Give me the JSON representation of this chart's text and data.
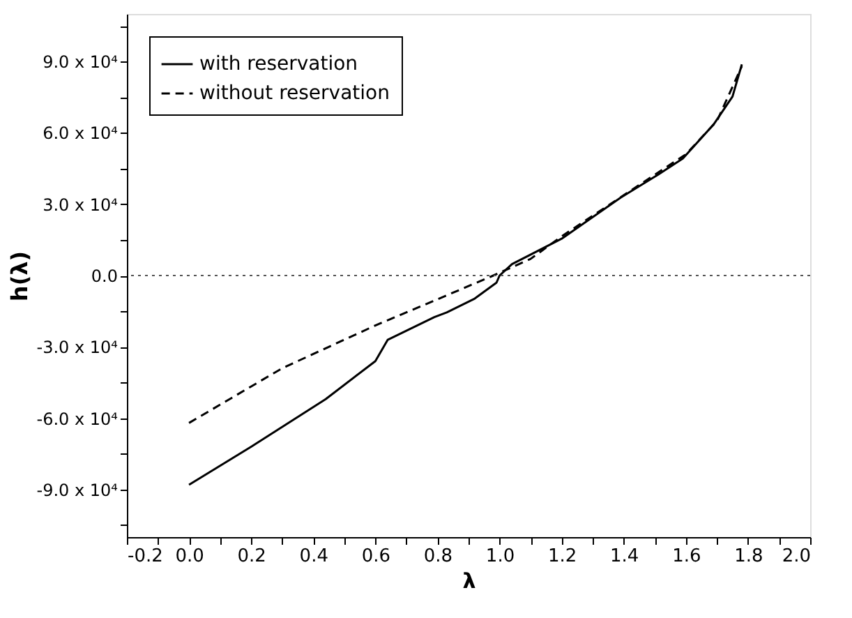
{
  "chart_data": {
    "type": "line",
    "xlabel": "λ",
    "ylabel": "h(λ)",
    "xlim": [
      -0.2,
      2.0
    ],
    "ylim": [
      -110000,
      110000
    ],
    "xticks": [
      -0.2,
      {
        "value": -0.1,
        "label": null
      },
      {
        "value": 0,
        "label": "0.0"
      },
      {
        "value": 0.1,
        "label": null
      },
      0.2,
      {
        "value": 0.3,
        "label": null
      },
      0.4,
      {
        "value": 0.5,
        "label": null
      },
      0.6,
      {
        "value": 0.7,
        "label": null
      },
      0.8,
      {
        "value": 0.9,
        "label": null
      },
      {
        "value": 1,
        "label": "1.0"
      },
      {
        "value": 1.1,
        "label": null
      },
      1.2,
      {
        "value": 1.3,
        "label": null
      },
      1.4,
      {
        "value": 1.5,
        "label": null
      },
      1.6,
      {
        "value": 1.7,
        "label": null
      },
      1.8,
      {
        "value": 1.9,
        "label": null
      },
      {
        "value": 2,
        "label": "2.0"
      }
    ],
    "yticks": [
      {
        "value": -105000,
        "label": null
      },
      {
        "value": -90000,
        "label": "-9.0 x 10⁴"
      },
      {
        "value": -75000,
        "label": null
      },
      {
        "value": -60000,
        "label": "-6.0 x 10⁴"
      },
      {
        "value": -45000,
        "label": null
      },
      {
        "value": -30000,
        "label": "-3.0 x 10⁴"
      },
      {
        "value": -15000,
        "label": null
      },
      {
        "value": 0,
        "label": "0.0"
      },
      {
        "value": 15000,
        "label": null
      },
      {
        "value": 30000,
        "label": "3.0 x 10⁴"
      },
      {
        "value": 45000,
        "label": null
      },
      {
        "value": 60000,
        "label": "6.0 x 10⁴"
      },
      {
        "value": 75000,
        "label": null
      },
      {
        "value": 90000,
        "label": "9.0 x 10⁴"
      },
      {
        "value": 105000,
        "label": null
      }
    ],
    "grid": false,
    "legend": "top left",
    "marker": "none",
    "ref_lines": [
      {
        "axis": "y",
        "value": 0,
        "line_style": "dotted",
        "color": "#555555"
      }
    ],
    "series": [
      {
        "name": "with reservation",
        "color": "#000000",
        "line_style": "solid",
        "x": [
          0,
          0.2,
          0.44,
          0.6,
          0.64,
          0.79,
          0.83,
          0.92,
          0.99,
          1.0,
          1.04,
          1.2,
          1.39,
          1.51,
          1.59,
          1.69,
          1.75,
          1.78
        ],
        "values": [
          -88000,
          -72000,
          -52000,
          -36000,
          -27000,
          -17500,
          -15500,
          -9700,
          -3000,
          0,
          4800,
          15500,
          32800,
          42400,
          49200,
          63700,
          75300,
          88800
        ]
      },
      {
        "name": "without reservation",
        "color": "#000000",
        "line_style": "dashed",
        "x": [
          0,
          0.3,
          0.6,
          0.8,
          0.98,
          1.1,
          1.2,
          1.4,
          1.6,
          1.7,
          1.78
        ],
        "values": [
          -62000,
          -39000,
          -21000,
          -10000,
          0,
          7000,
          16500,
          33800,
          51000,
          65000,
          88000
        ]
      }
    ]
  }
}
